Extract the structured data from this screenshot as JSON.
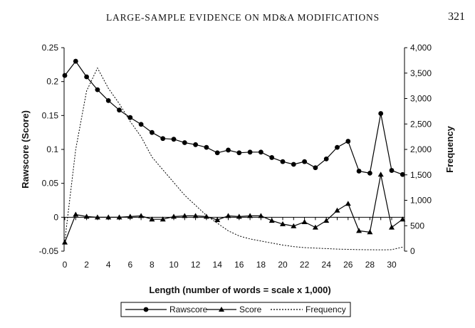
{
  "header": {
    "running_head": "LARGE-SAMPLE EVIDENCE ON MD&A MODIFICATIONS",
    "page_number": "321"
  },
  "chart_data": {
    "type": "line",
    "title": "",
    "xlabel": "Length (number of words = scale x 1,000)",
    "ylabel_left": "Rawscore (Score)",
    "ylabel_right": "Frequency",
    "xlim": [
      0,
      31
    ],
    "ylim_left": [
      -0.05,
      0.25
    ],
    "ylim_right": [
      0,
      4000
    ],
    "x_ticks": [
      0,
      2,
      4,
      6,
      8,
      10,
      12,
      14,
      16,
      18,
      20,
      22,
      24,
      26,
      28,
      30
    ],
    "y_left_ticks": [
      "-0.05",
      "0",
      "0.05",
      "0.1",
      "0.15",
      "0.2",
      "0.25"
    ],
    "y_right_ticks": [
      "0",
      "500",
      "1,000",
      "1,500",
      "2,000",
      "2,500",
      "3,000",
      "3,500",
      "4,000"
    ],
    "grid": false,
    "legend_position": "bottom",
    "x": [
      0,
      1,
      2,
      3,
      4,
      5,
      6,
      7,
      8,
      9,
      10,
      11,
      12,
      13,
      14,
      15,
      16,
      17,
      18,
      19,
      20,
      21,
      22,
      23,
      24,
      25,
      26,
      27,
      28,
      29,
      30,
      31
    ],
    "series": [
      {
        "name": "Rawscore",
        "axis": "left",
        "marker": "circle",
        "line": "solid",
        "values": [
          0.209,
          0.23,
          0.207,
          0.188,
          0.172,
          0.158,
          0.147,
          0.137,
          0.125,
          0.116,
          0.115,
          0.11,
          0.107,
          0.103,
          0.095,
          0.099,
          0.095,
          0.096,
          0.096,
          0.088,
          0.082,
          0.078,
          0.082,
          0.073,
          0.086,
          0.103,
          0.112,
          0.068,
          0.065,
          0.153,
          0.069,
          0.063
        ]
      },
      {
        "name": "Score",
        "axis": "left",
        "marker": "triangle",
        "line": "solid",
        "values": [
          -0.037,
          0.004,
          0.001,
          0.0,
          0.0,
          0.0,
          0.001,
          0.002,
          -0.003,
          -0.003,
          0.001,
          0.002,
          0.002,
          0.001,
          -0.004,
          0.002,
          0.001,
          0.002,
          0.002,
          -0.005,
          -0.01,
          -0.013,
          -0.007,
          -0.015,
          -0.005,
          0.01,
          0.02,
          -0.02,
          -0.022,
          0.063,
          -0.015,
          -0.003
        ]
      },
      {
        "name": "Frequency",
        "axis": "right",
        "marker": "none",
        "line": "dashed",
        "values": [
          200,
          2000,
          3150,
          3600,
          3200,
          2900,
          2550,
          2250,
          1850,
          1600,
          1350,
          1100,
          900,
          700,
          550,
          400,
          300,
          240,
          200,
          160,
          120,
          90,
          70,
          60,
          50,
          40,
          35,
          30,
          28,
          25,
          30,
          80
        ]
      }
    ]
  }
}
